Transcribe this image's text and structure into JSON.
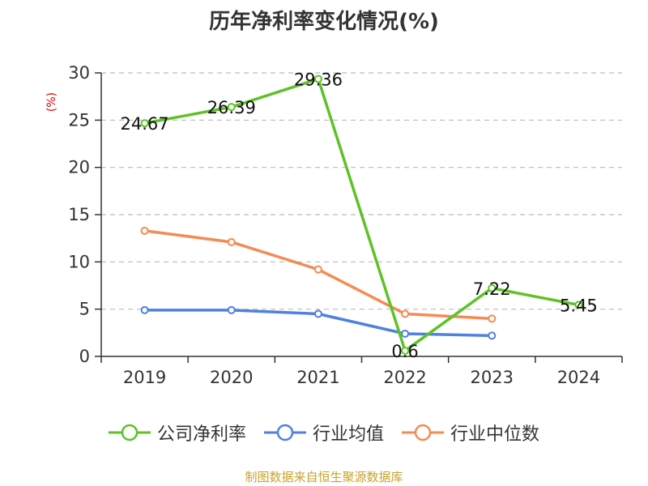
{
  "title": "历年净利率变化情况(%)",
  "source_note": "制图数据来自恒生聚源数据库",
  "chart_data": {
    "type": "line",
    "title": "历年净利率变化情况(%)",
    "ylabel": "(%)",
    "xlabel": "",
    "ylim": [
      0,
      30
    ],
    "yticks": [
      0,
      5,
      10,
      15,
      20,
      25,
      30
    ],
    "categories": [
      "2019",
      "2020",
      "2021",
      "2022",
      "2023",
      "2024"
    ],
    "grid": true,
    "legend_position": "bottom",
    "series": [
      {
        "name": "公司净利率",
        "color": "#5ec227",
        "values": [
          24.67,
          26.39,
          29.36,
          0.6,
          7.22,
          5.45
        ],
        "show_labels": true,
        "label_texts": [
          "24.67",
          "26.39",
          "29.36",
          "0.6",
          "7.22",
          "5.45"
        ]
      },
      {
        "name": "行业均值",
        "color": "#4f81e0",
        "values": [
          4.9,
          4.9,
          4.5,
          2.4,
          2.2,
          null
        ],
        "show_labels": false
      },
      {
        "name": "行业中位数",
        "color": "#f58b54",
        "values": [
          13.3,
          12.1,
          9.2,
          4.5,
          4.0,
          null
        ],
        "show_labels": false
      }
    ]
  }
}
